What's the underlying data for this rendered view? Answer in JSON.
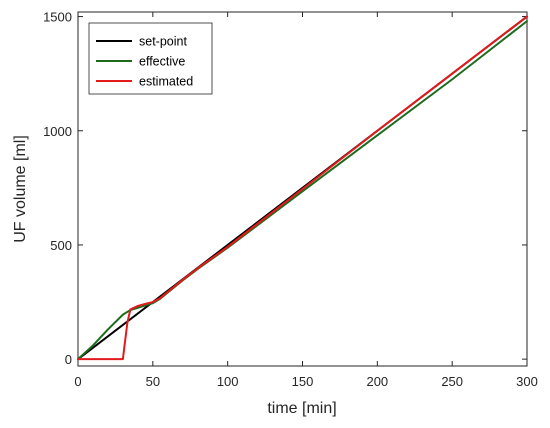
{
  "chart_data": {
    "type": "line",
    "title": "",
    "xlabel": "time  [min]",
    "ylabel": "UF volume  [ml]",
    "xlim": [
      0,
      300
    ],
    "ylim": [
      -30,
      1520
    ],
    "xticks": [
      0,
      50,
      100,
      150,
      200,
      250,
      300
    ],
    "yticks": [
      0,
      500,
      1000,
      1500
    ],
    "grid": false,
    "legend_position": "top-left",
    "series": [
      {
        "name": "set-point",
        "color": "#000000",
        "x": [
          0,
          300
        ],
        "y": [
          0,
          1500
        ]
      },
      {
        "name": "effective",
        "color": "#1e6b1e",
        "x": [
          0,
          10,
          20,
          30,
          35,
          40,
          45,
          50,
          55,
          60,
          70,
          80,
          100,
          150,
          200,
          250,
          300
        ],
        "y": [
          0,
          60,
          130,
          195,
          215,
          225,
          235,
          245,
          265,
          292,
          345,
          395,
          488,
          735,
          980,
          1225,
          1480
        ]
      },
      {
        "name": "estimated",
        "color": "#e31a1c",
        "x": [
          0,
          30,
          31,
          33,
          35,
          40,
          45,
          50,
          55,
          60,
          70,
          80,
          100,
          150,
          200,
          250,
          300
        ],
        "y": [
          0,
          0,
          55,
          160,
          218,
          233,
          242,
          250,
          268,
          295,
          348,
          398,
          492,
          745,
          1000,
          1250,
          1500
        ]
      }
    ]
  }
}
